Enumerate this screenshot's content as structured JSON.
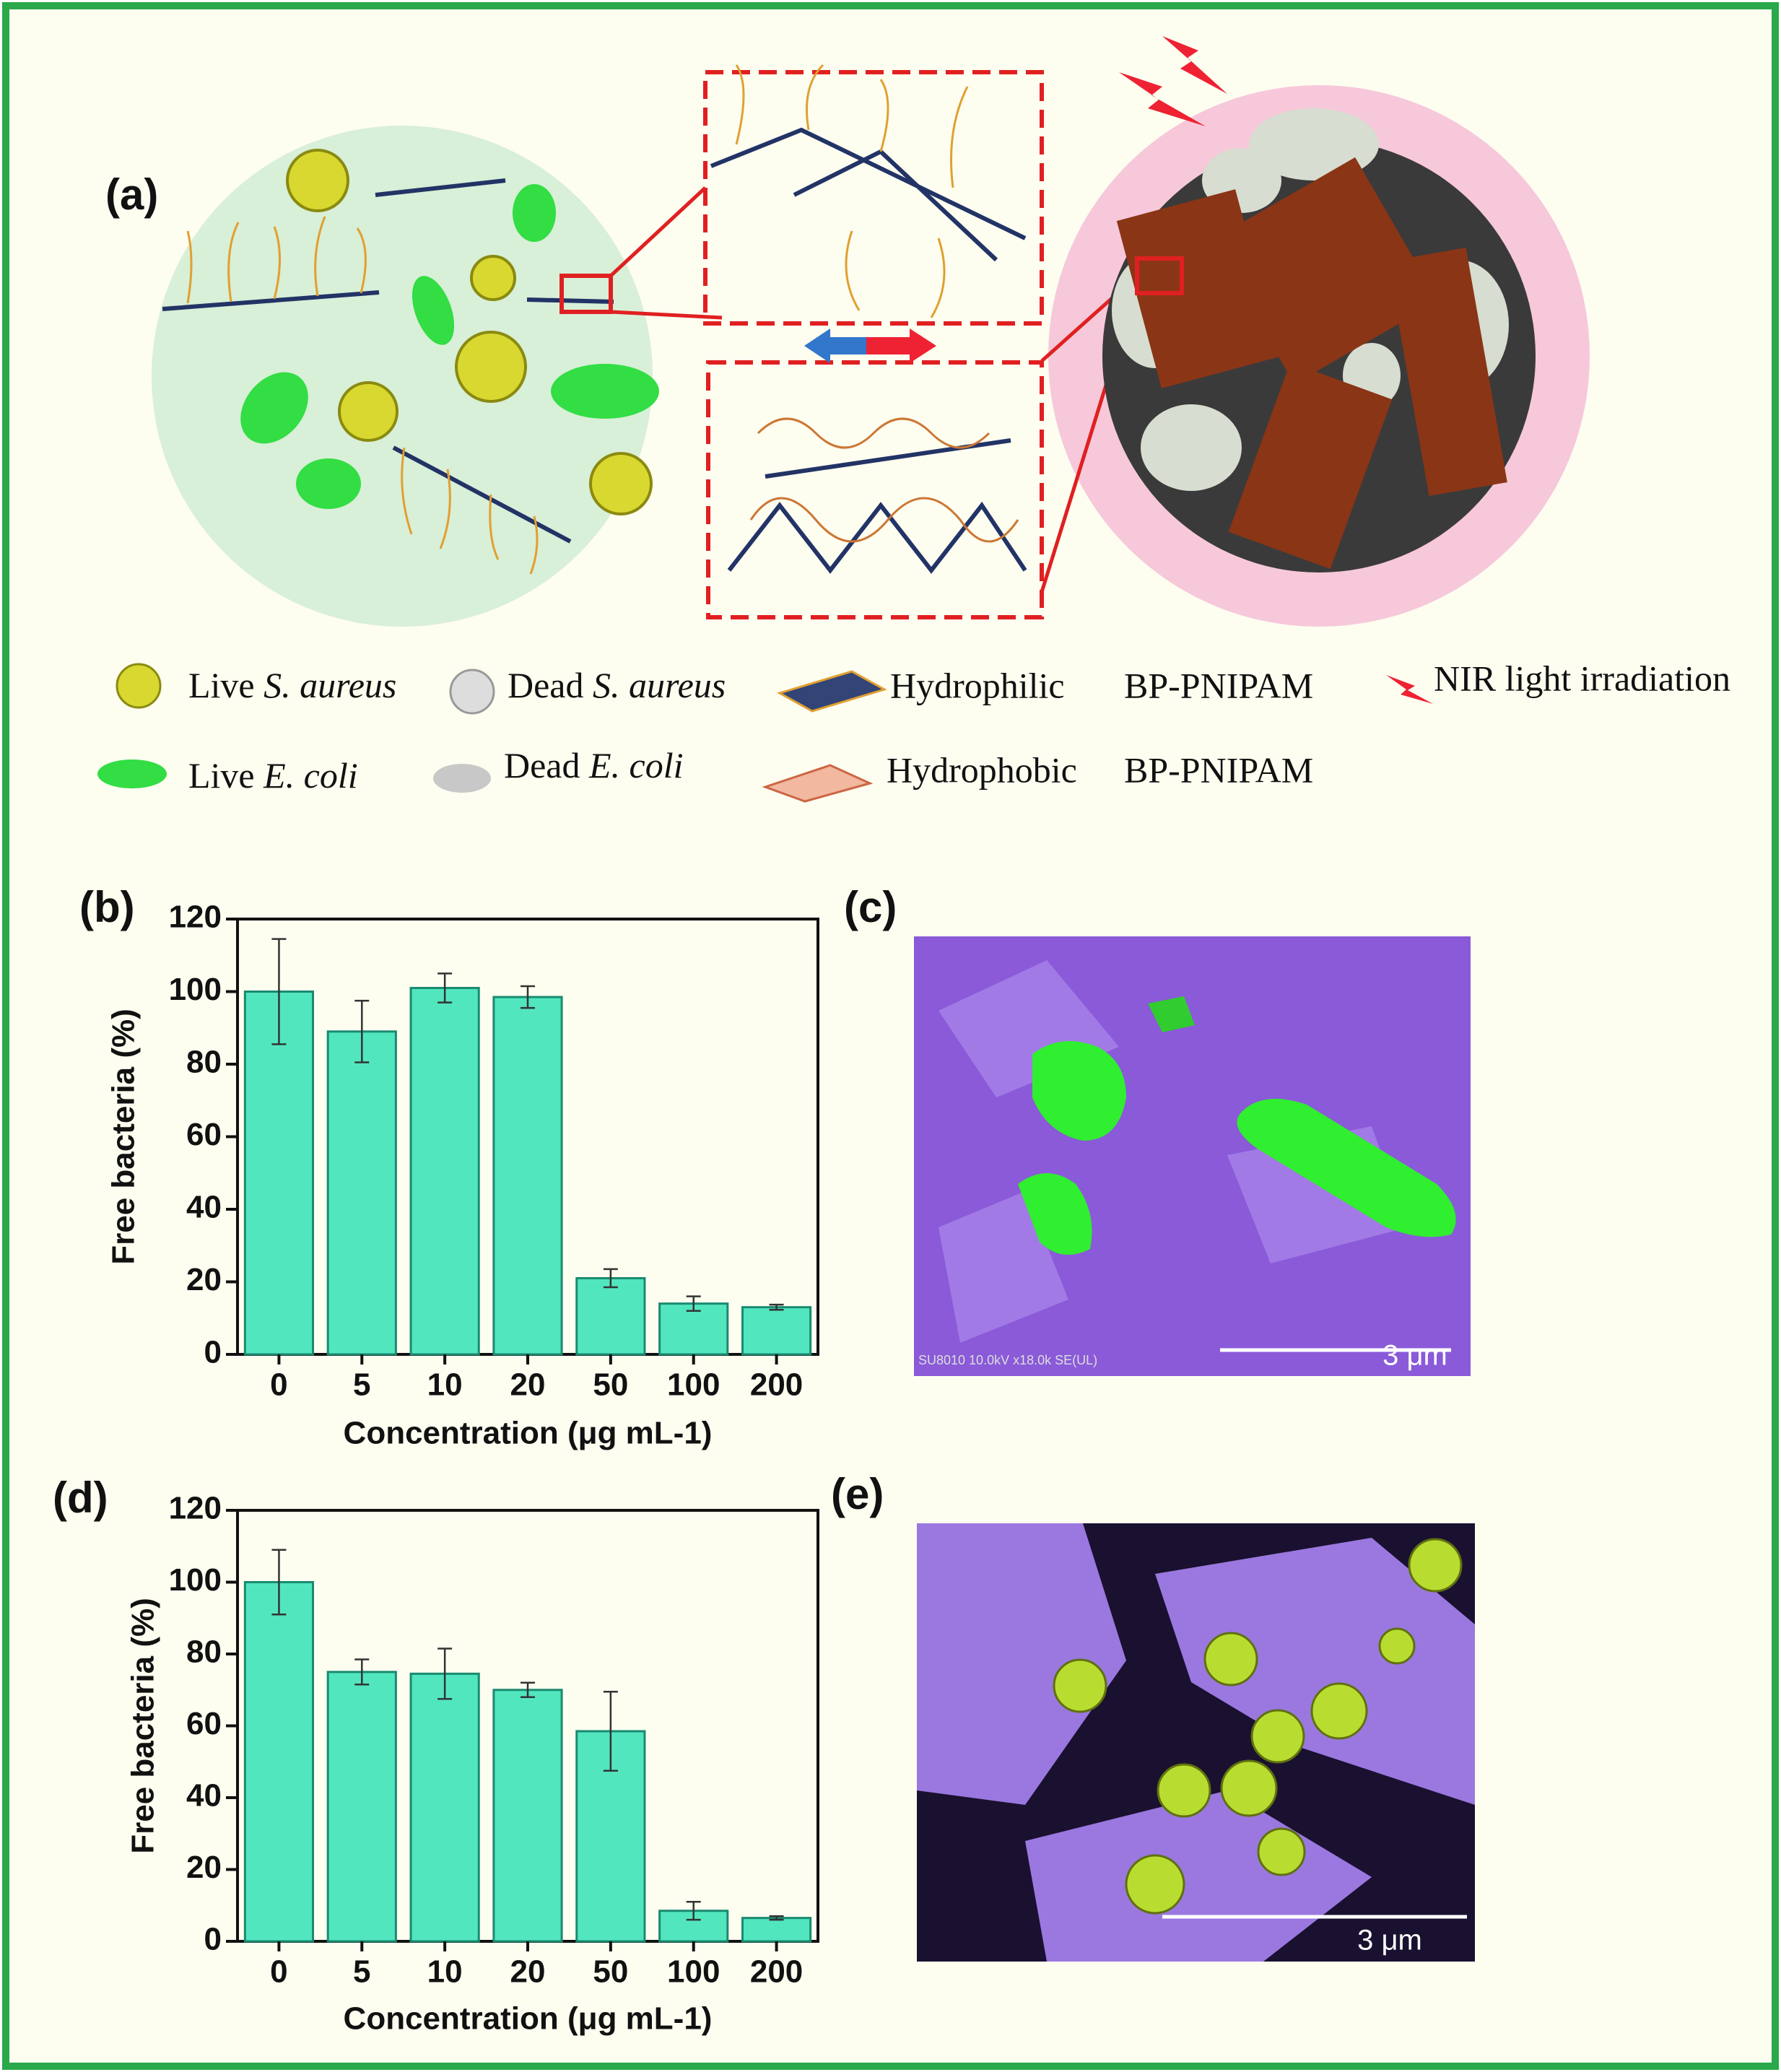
{
  "panel_a": {
    "label": "(a)",
    "legend": {
      "live_sa": [
        "Live",
        "S. aureus"
      ],
      "dead_sa": [
        "Dead",
        "S. aureus"
      ],
      "hydrophilic": [
        "Hydrophilic",
        "BP-PNIPAM"
      ],
      "nir": "NIR light irradiation",
      "live_ec": [
        "Live",
        "E. coli"
      ],
      "dead_ec": [
        "Dead",
        "E. coli"
      ],
      "hydrophobic": [
        "Hydrophobic",
        "BP-PNIPAM"
      ]
    }
  },
  "panel_c": {
    "label": "(c)",
    "scale_bar": "3 μm",
    "info": "SU8010 10.0kV x18.0k SE(UL)"
  },
  "panel_e": {
    "label": "(e)",
    "scale_bar": "3 μm"
  },
  "chart_data": [
    {
      "type": "bar",
      "panel_label": "(b)",
      "ylabel": "Free bacteria (%)",
      "xlabel": "Concentration (μg mL-1)",
      "categories": [
        "0",
        "5",
        "10",
        "20",
        "50",
        "100",
        "200"
      ],
      "values": [
        100,
        89,
        101,
        98.5,
        21,
        14,
        13
      ],
      "errors": [
        14.5,
        8.5,
        4,
        3,
        2.5,
        2,
        0.7
      ],
      "color": "#52e6bf",
      "ylim": [
        0,
        120
      ],
      "yticks": [
        0,
        20,
        40,
        60,
        80,
        100,
        120
      ]
    },
    {
      "type": "bar",
      "panel_label": "(d)",
      "ylabel": "Free bacteria (%)",
      "xlabel": "Concentration (μg mL-1)",
      "categories": [
        "0",
        "5",
        "10",
        "20",
        "50",
        "100",
        "200"
      ],
      "values": [
        100,
        75,
        74.5,
        70,
        58.5,
        8.5,
        6.5
      ],
      "errors": [
        9,
        3.5,
        7,
        2,
        11,
        2.5,
        0.5
      ],
      "color": "#52e6bf",
      "ylim": [
        0,
        120
      ],
      "yticks": [
        0,
        20,
        40,
        60,
        80,
        100,
        120
      ]
    }
  ]
}
